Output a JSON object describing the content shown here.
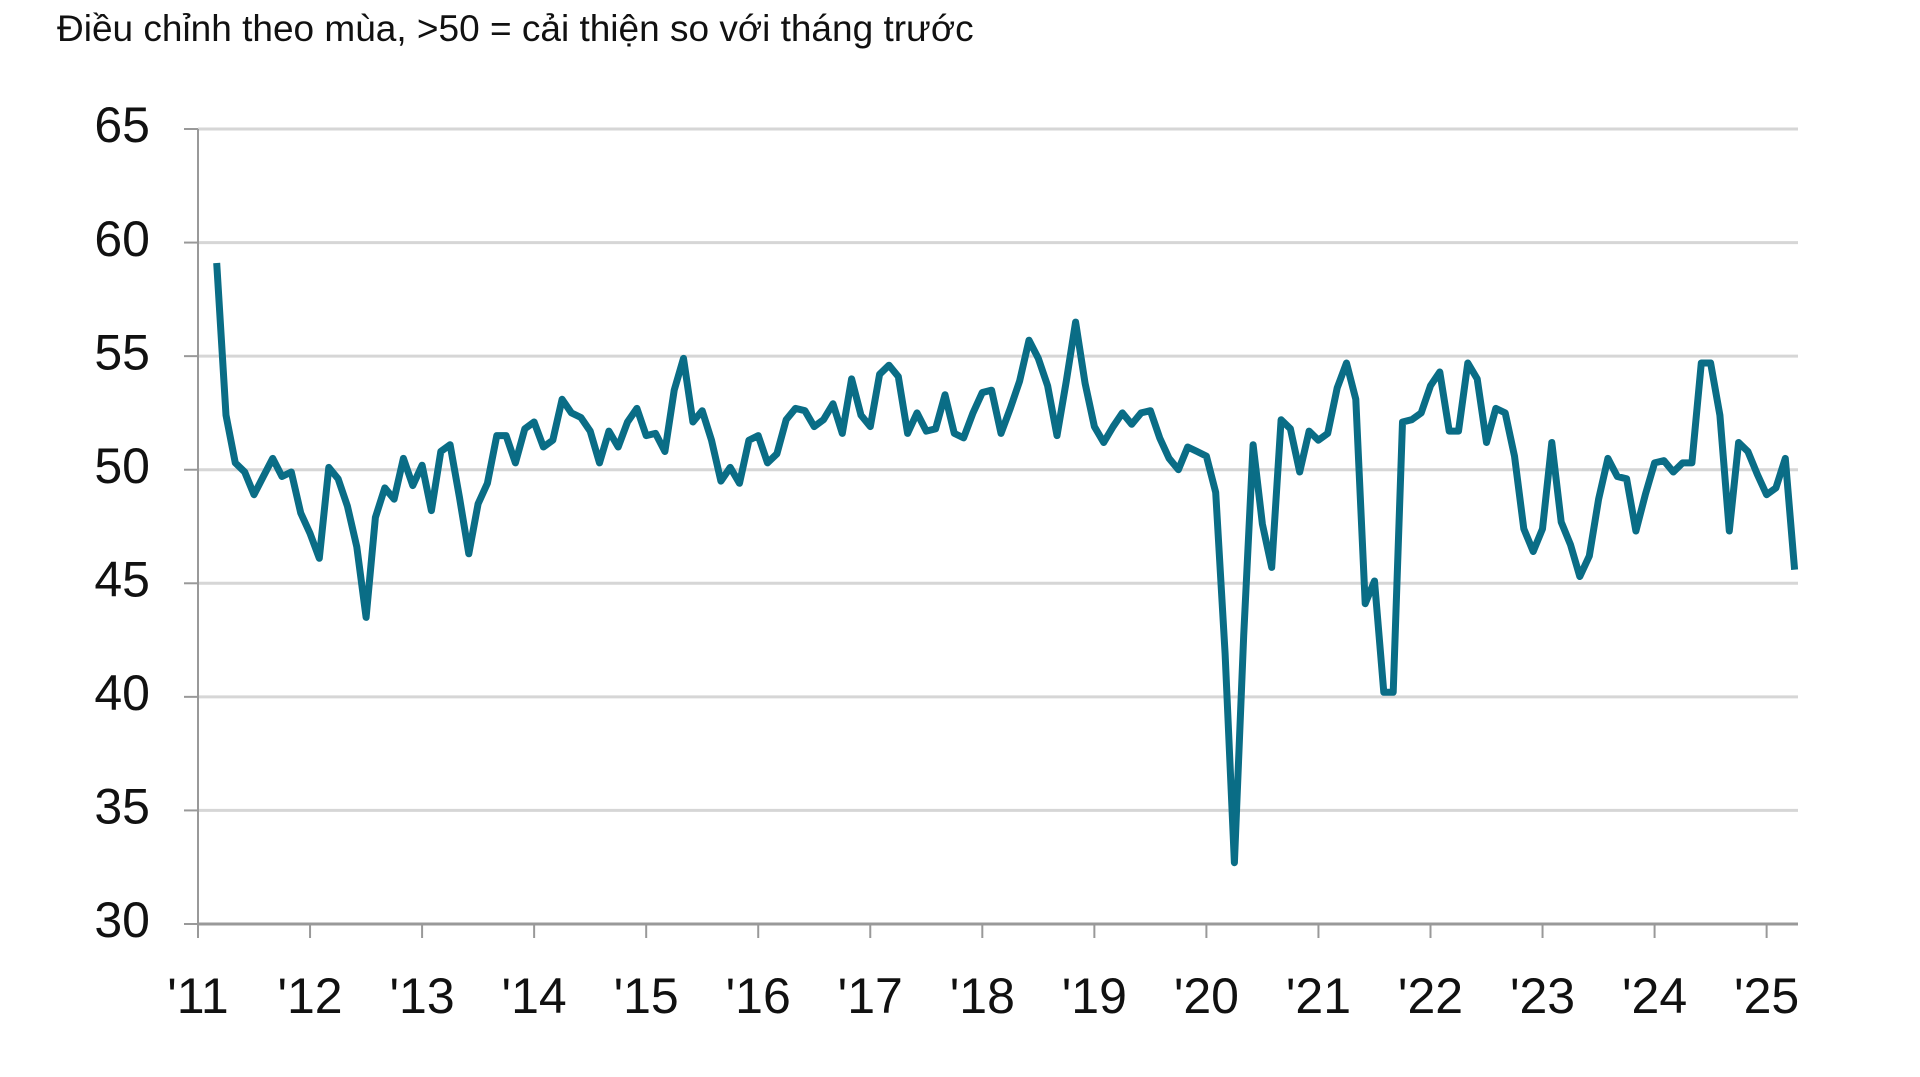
{
  "chart_data": {
    "type": "line",
    "subtitle": "Điều chỉnh theo mùa, >50 = cải thiện so với tháng trước",
    "x": [
      2011.167,
      2011.25,
      2011.333,
      2011.417,
      2011.5,
      2011.583,
      2011.667,
      2011.75,
      2011.833,
      2011.917,
      2012,
      2012.083,
      2012.167,
      2012.25,
      2012.333,
      2012.417,
      2012.5,
      2012.583,
      2012.667,
      2012.75,
      2012.833,
      2012.917,
      2013,
      2013.083,
      2013.167,
      2013.25,
      2013.333,
      2013.417,
      2013.5,
      2013.583,
      2013.667,
      2013.75,
      2013.833,
      2013.917,
      2014,
      2014.083,
      2014.167,
      2014.25,
      2014.333,
      2014.417,
      2014.5,
      2014.583,
      2014.667,
      2014.75,
      2014.833,
      2014.917,
      2015,
      2015.083,
      2015.167,
      2015.25,
      2015.333,
      2015.417,
      2015.5,
      2015.583,
      2015.667,
      2015.75,
      2015.833,
      2015.917,
      2016,
      2016.083,
      2016.167,
      2016.25,
      2016.333,
      2016.417,
      2016.5,
      2016.583,
      2016.667,
      2016.75,
      2016.833,
      2016.917,
      2017,
      2017.083,
      2017.167,
      2017.25,
      2017.333,
      2017.417,
      2017.5,
      2017.583,
      2017.667,
      2017.75,
      2017.833,
      2017.917,
      2018,
      2018.083,
      2018.167,
      2018.25,
      2018.333,
      2018.417,
      2018.5,
      2018.583,
      2018.667,
      2018.75,
      2018.833,
      2018.917,
      2019,
      2019.083,
      2019.167,
      2019.25,
      2019.333,
      2019.417,
      2019.5,
      2019.583,
      2019.667,
      2019.75,
      2019.833,
      2019.917,
      2020,
      2020.083,
      2020.167,
      2020.25,
      2020.333,
      2020.417,
      2020.5,
      2020.583,
      2020.667,
      2020.75,
      2020.833,
      2020.917,
      2021,
      2021.083,
      2021.167,
      2021.25,
      2021.333,
      2021.417,
      2021.5,
      2021.583,
      2021.667,
      2021.75,
      2021.833,
      2021.917,
      2022,
      2022.083,
      2022.167,
      2022.25,
      2022.333,
      2022.417,
      2022.5,
      2022.583,
      2022.667,
      2022.75,
      2022.833,
      2022.917,
      2023,
      2023.083,
      2023.167,
      2023.25,
      2023.333,
      2023.417,
      2023.5,
      2023.583,
      2023.667,
      2023.75,
      2023.833,
      2023.917,
      2024,
      2024.083,
      2024.167,
      2024.25,
      2024.333,
      2024.417,
      2024.5,
      2024.583,
      2024.667,
      2024.75,
      2024.833,
      2024.917,
      2025,
      2025.083,
      2025.167,
      2025.25
    ],
    "series": [
      {
        "color": "#0a6d86",
        "values": [
          59.1,
          52.4,
          50.3,
          49.9,
          48.9,
          49.7,
          50.5,
          49.7,
          49.9,
          48.1,
          47.2,
          46.1,
          50.1,
          49.6,
          48.4,
          46.6,
          43.5,
          47.9,
          49.2,
          48.7,
          50.5,
          49.3,
          50.2,
          48.2,
          50.8,
          51.1,
          48.8,
          46.3,
          48.5,
          49.4,
          51.5,
          51.5,
          50.3,
          51.8,
          52.1,
          51.0,
          51.3,
          53.1,
          52.5,
          52.3,
          51.7,
          50.3,
          51.7,
          51.0,
          52.1,
          52.7,
          51.5,
          51.6,
          50.8,
          53.5,
          54.9,
          52.1,
          52.6,
          51.3,
          49.5,
          50.1,
          49.4,
          51.3,
          51.5,
          50.3,
          50.7,
          52.2,
          52.7,
          52.6,
          51.9,
          52.2,
          52.9,
          51.6,
          54.0,
          52.4,
          51.9,
          54.2,
          54.6,
          54.1,
          51.6,
          52.5,
          51.7,
          51.8,
          53.3,
          51.6,
          51.4,
          52.5,
          53.4,
          53.5,
          51.6,
          52.7,
          53.9,
          55.7,
          54.9,
          53.7,
          51.5,
          53.9,
          56.5,
          53.8,
          51.9,
          51.2,
          51.9,
          52.5,
          52.0,
          52.5,
          52.6,
          51.4,
          50.5,
          50.0,
          51.0,
          50.8,
          50.6,
          49.0,
          41.9,
          32.7,
          42.7,
          51.1,
          47.6,
          45.7,
          52.2,
          51.8,
          49.9,
          51.7,
          51.3,
          51.6,
          53.6,
          54.7,
          53.1,
          44.1,
          45.1,
          40.2,
          40.2,
          52.1,
          52.2,
          52.5,
          53.7,
          54.3,
          51.7,
          51.7,
          54.7,
          54.0,
          51.2,
          52.7,
          52.5,
          50.6,
          47.4,
          46.4,
          47.4,
          51.2,
          47.7,
          46.7,
          45.3,
          46.2,
          48.7,
          50.5,
          49.7,
          49.6,
          47.3,
          48.9,
          50.3,
          50.4,
          49.9,
          50.3,
          50.3,
          54.7,
          54.7,
          52.4,
          47.3,
          51.2,
          50.8,
          49.8,
          48.9,
          49.2,
          50.5,
          45.6
        ]
      }
    ],
    "xlim": [
      2011,
      2025.28
    ],
    "xticks": [
      {
        "value": 2011,
        "label": "'11"
      },
      {
        "value": 2012,
        "label": "'12"
      },
      {
        "value": 2013,
        "label": "'13"
      },
      {
        "value": 2014,
        "label": "'14"
      },
      {
        "value": 2015,
        "label": "'15"
      },
      {
        "value": 2016,
        "label": "'16"
      },
      {
        "value": 2017,
        "label": "'17"
      },
      {
        "value": 2018,
        "label": "'18"
      },
      {
        "value": 2019,
        "label": "'19"
      },
      {
        "value": 2020,
        "label": "'20"
      },
      {
        "value": 2021,
        "label": "'21"
      },
      {
        "value": 2022,
        "label": "'22"
      },
      {
        "value": 2023,
        "label": "'23"
      },
      {
        "value": 2024,
        "label": "'24"
      },
      {
        "value": 2025,
        "label": "'25"
      }
    ],
    "ylim": [
      30,
      65
    ],
    "yticks": [
      30,
      35,
      40,
      45,
      50,
      55,
      60,
      65
    ],
    "grid": true
  }
}
